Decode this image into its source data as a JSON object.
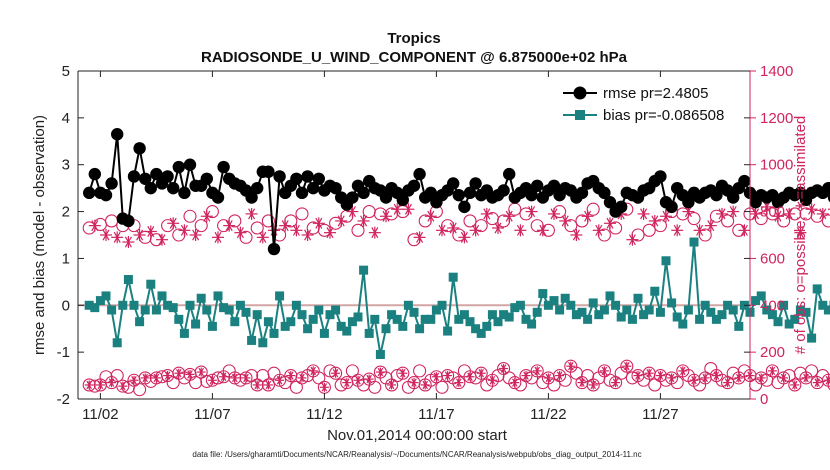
{
  "chart_data": {
    "type": "line",
    "title": "Tropics",
    "subtitle": "RADIOSONDE_U_WIND_COMPONENT @ 6.875000e+02 hPa",
    "xlabel": "Nov.01,2014 00:00:00 start",
    "ylabel_left": "rmse and bias (model - observation)",
    "ylabel_right": "# of obs: o=possible; ∗=assimilated",
    "ylim_left": [
      -2,
      5
    ],
    "ylim_right": [
      0,
      1400
    ],
    "xlim": [
      1,
      31
    ],
    "x_ticks": [
      2,
      7,
      12,
      17,
      22,
      27
    ],
    "x_tick_labels": [
      "11/02",
      "11/07",
      "11/12",
      "11/17",
      "11/22",
      "11/27"
    ],
    "y_ticks_left": [
      "-2",
      "-1",
      "0",
      "1",
      "2",
      "3",
      "4",
      "5"
    ],
    "y_ticks_right": [
      "0",
      "200",
      "400",
      "600",
      "800",
      "1000",
      "1200",
      "1400"
    ],
    "footnote": "data file: /Users/gharamti/Documents/NCAR/Reanalysis/~/Documents/NCAR/Reanalysis/webpub/obs_diag_output_2014-11.nc",
    "colors": {
      "rmse": "#000000",
      "bias": "#1a8080",
      "obs": "#d0245e",
      "zero_line": "#d3a6a6"
    },
    "x_start": 1.5,
    "x_step": 0.25,
    "series": [
      {
        "name": "rmse pr=2.4805",
        "axis": "left",
        "values": [
          2.4,
          2.8,
          2.4,
          2.35,
          2.6,
          3.65,
          1.85,
          1.8,
          2.75,
          3.35,
          2.7,
          2.5,
          2.8,
          2.6,
          2.75,
          2.5,
          2.95,
          2.4,
          3.0,
          2.55,
          2.55,
          2.7,
          2.4,
          2.3,
          2.95,
          2.7,
          2.6,
          2.55,
          2.45,
          2.3,
          2.5,
          2.85,
          2.85,
          1.2,
          2.75,
          2.4,
          2.55,
          2.7,
          2.4,
          2.75,
          2.5,
          2.7,
          2.45,
          2.55,
          2.5,
          2.3,
          2.15,
          2.3,
          2.55,
          2.4,
          2.65,
          2.5,
          2.45,
          2.3,
          2.5,
          2.4,
          2.25,
          2.45,
          2.55,
          2.8,
          2.3,
          2.4,
          2.2,
          2.35,
          2.45,
          2.6,
          2.35,
          2.1,
          2.4,
          2.6,
          2.35,
          2.45,
          2.3,
          2.35,
          2.45,
          2.8,
          2.3,
          2.4,
          2.5,
          2.35,
          2.55,
          2.3,
          2.45,
          2.55,
          2.35,
          2.5,
          2.45,
          2.3,
          2.4,
          2.6,
          2.65,
          2.5,
          2.4,
          2.2,
          2.0,
          2.1,
          2.4,
          2.35,
          2.3,
          2.45,
          2.5,
          2.65,
          2.75,
          2.2,
          2.1,
          2.5,
          2.35,
          2.2,
          2.4,
          2.3,
          2.4,
          2.45,
          2.35,
          2.55,
          2.45,
          2.3,
          2.5,
          2.65,
          2.4,
          2.2,
          2.35,
          2.3,
          2.35,
          2.2,
          2.3,
          2.4,
          2.35,
          2.4,
          2.25,
          2.4,
          2.45,
          2.4,
          2.5,
          2.3,
          2.4,
          2.6,
          2.45,
          2.35,
          2.5,
          2.45,
          2.3,
          2.4,
          2.25,
          2.55,
          2.1,
          2.35,
          2.45,
          2.5,
          2.75
        ]
      },
      {
        "name": "bias pr=-0.086508",
        "axis": "left",
        "values": [
          0.0,
          -0.05,
          0.1,
          0.2,
          -0.1,
          -0.8,
          0.0,
          0.55,
          0.0,
          -0.35,
          -0.1,
          0.45,
          -0.1,
          0.2,
          0.0,
          -0.05,
          -0.3,
          -0.6,
          0.0,
          -0.4,
          0.15,
          -0.1,
          -0.45,
          0.2,
          -0.05,
          -0.1,
          -0.35,
          0.0,
          -0.15,
          -0.75,
          -0.2,
          -0.8,
          -0.35,
          -0.6,
          0.2,
          -0.45,
          -0.35,
          0.0,
          -0.2,
          -0.5,
          -0.3,
          -0.1,
          -0.6,
          -0.2,
          -0.1,
          -0.45,
          -0.55,
          -0.35,
          -0.25,
          0.75,
          -0.6,
          -0.3,
          -1.05,
          -0.5,
          -0.2,
          -0.3,
          -0.45,
          0.0,
          -0.15,
          -0.5,
          -0.3,
          -0.3,
          -0.1,
          0.0,
          -0.55,
          0.6,
          -0.3,
          -0.2,
          -0.35,
          -0.5,
          -0.6,
          -0.45,
          -0.2,
          -0.35,
          -0.2,
          -0.25,
          -0.05,
          0.0,
          -0.3,
          -0.4,
          -0.15,
          0.25,
          0.0,
          0.1,
          -0.1,
          0.15,
          0.0,
          -0.2,
          -0.15,
          -0.3,
          0.05,
          -0.2,
          -0.1,
          0.2,
          0.0,
          -0.25,
          -0.1,
          -0.3,
          0.15,
          -0.2,
          -0.1,
          0.3,
          -0.15,
          0.95,
          0.05,
          -0.25,
          -0.4,
          -0.1,
          1.35,
          -0.3,
          0.0,
          -0.15,
          -0.3,
          -0.2,
          0.0,
          -0.1,
          -0.45,
          0.0,
          -0.15,
          0.1,
          0.2,
          -0.1,
          -0.2,
          -0.35,
          0.0,
          -0.4,
          -0.3,
          -0.1,
          -0.15,
          -0.7,
          0.35,
          0.0,
          -0.1,
          0.0,
          -0.2,
          -0.4,
          0.0,
          -0.2,
          -0.1,
          -0.1,
          0.0,
          0.2,
          -0.25,
          -0.3,
          0.2
        ]
      },
      {
        "name": "obs possible (upper)",
        "axis": "right",
        "marker": "circle",
        "values": [
          730,
          740,
          745,
          700,
          760,
          690,
          740,
          670,
          740,
          700,
          690,
          715,
          680,
          680,
          740,
          750,
          700,
          720,
          780,
          700,
          740,
          780,
          800,
          690,
          740,
          740,
          760,
          710,
          690,
          790,
          730,
          690,
          760,
          720,
          700,
          740,
          760,
          720,
          790,
          700,
          730,
          750,
          720,
          710,
          750,
          760,
          780,
          800,
          720,
          760,
          800,
          710,
          790,
          780,
          790,
          810,
          800,
          810,
          680,
          690,
          760,
          780,
          800,
          720,
          740,
          730,
          700,
          690,
          760,
          720,
          740,
          790,
          770,
          730,
          760,
          780,
          810,
          720,
          790,
          800,
          740,
          720,
          720,
          790,
          800,
          760,
          740,
          700,
          760,
          780,
          810,
          720,
          700,
          750,
          730,
          790,
          810,
          680,
          700,
          790,
          720,
          760,
          740,
          780,
          800,
          720,
          790,
          800,
          770,
          720,
          700,
          740,
          780,
          790,
          760,
          800,
          720,
          720,
          790,
          790,
          770,
          820,
          790,
          780,
          760,
          790,
          790,
          710,
          790,
          810,
          780,
          790,
          760,
          810,
          780,
          790,
          790,
          810,
          780,
          790,
          780,
          770,
          790,
          760,
          800,
          790
        ]
      },
      {
        "name": "obs assimilated (lower)",
        "axis": "right",
        "marker": "star",
        "values": [
          60,
          55,
          60,
          95,
          70,
          100,
          55,
          50,
          80,
          40,
          90,
          75,
          90,
          95,
          100,
          70,
          110,
          90,
          105,
          70,
          115,
          75,
          80,
          90,
          95,
          120,
          90,
          80,
          90,
          100,
          60,
          100,
          60,
          110,
          80,
          70,
          100,
          50,
          90,
          100,
          120,
          90,
          50,
          120,
          110,
          60,
          70,
          120,
          80,
          60,
          85,
          50,
          115,
          90,
          60,
          100,
          110,
          50,
          70,
          120,
          60,
          80,
          95,
          50,
          100,
          90,
          70,
          120,
          95,
          90,
          110,
          60,
          80,
          100,
          130,
          90,
          70,
          60,
          100,
          90,
          120,
          70,
          90,
          60,
          100,
          80,
          140,
          110,
          70,
          100,
          60,
          90,
          120,
          80,
          70,
          110,
          140,
          90,
          100,
          80,
          110,
          60,
          100,
          80,
          90,
          70,
          120,
          100,
          80,
          60,
          90,
          130,
          100,
          80,
          70,
          110,
          90,
          120,
          100,
          60,
          90,
          80,
          120,
          70,
          90,
          100,
          60,
          110,
          90,
          120,
          70,
          100,
          80,
          60,
          90,
          110,
          60,
          100,
          80,
          90,
          60,
          100,
          60,
          70,
          40,
          0
        ]
      }
    ]
  }
}
